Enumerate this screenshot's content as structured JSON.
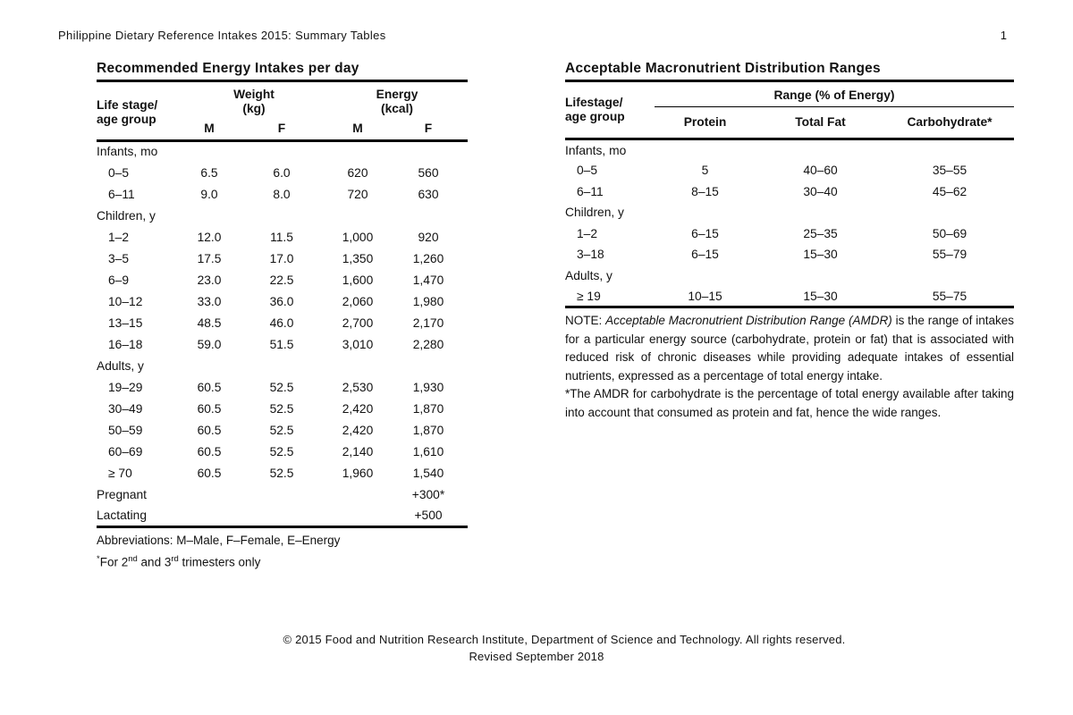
{
  "page": {
    "header": "Philippine Dietary Reference Intakes 2015: Summary Tables",
    "page_number": "1",
    "footer_line1": "© 2015 Food and Nutrition Research Institute, Department of Science and Technology. All rights reserved.",
    "footer_line2": "Revised September 2018"
  },
  "energy_table": {
    "title": "Recommended Energy Intakes per day",
    "col1_header_line1": "Life stage/",
    "col1_header_line2": "age group",
    "weight_header_line1": "Weight",
    "weight_header_line2": "(kg)",
    "energy_header_line1": "Energy",
    "energy_header_line2": "(kcal)",
    "sub_headers": [
      "M",
      "F",
      "M",
      "F"
    ],
    "rows": [
      {
        "label": "Infants, mo",
        "group": true,
        "values": []
      },
      {
        "label": "0–5",
        "values": [
          "6.5",
          "6.0",
          "620",
          "560"
        ]
      },
      {
        "label": "6–11",
        "values": [
          "9.0",
          "8.0",
          "720",
          "630"
        ]
      },
      {
        "label": "Children, y",
        "group": true,
        "values": []
      },
      {
        "label": "1–2",
        "values": [
          "12.0",
          "11.5",
          "1,000",
          "920"
        ]
      },
      {
        "label": "3–5",
        "values": [
          "17.5",
          "17.0",
          "1,350",
          "1,260"
        ]
      },
      {
        "label": "6–9",
        "values": [
          "23.0",
          "22.5",
          "1,600",
          "1,470"
        ]
      },
      {
        "label": "10–12",
        "values": [
          "33.0",
          "36.0",
          "2,060",
          "1,980"
        ]
      },
      {
        "label": "13–15",
        "values": [
          "48.5",
          "46.0",
          "2,700",
          "2,170"
        ]
      },
      {
        "label": "16–18",
        "values": [
          "59.0",
          "51.5",
          "3,010",
          "2,280"
        ]
      },
      {
        "label": "Adults, y",
        "group": true,
        "values": []
      },
      {
        "label": "19–29",
        "values": [
          "60.5",
          "52.5",
          "2,530",
          "1,930"
        ]
      },
      {
        "label": "30–49",
        "values": [
          "60.5",
          "52.5",
          "2,420",
          "1,870"
        ]
      },
      {
        "label": "50–59",
        "values": [
          "60.5",
          "52.5",
          "2,420",
          "1,870"
        ]
      },
      {
        "label": "60–69",
        "values": [
          "60.5",
          "52.5",
          "2,140",
          "1,610"
        ]
      },
      {
        "label": "≥ 70",
        "values": [
          "60.5",
          "52.5",
          "1,960",
          "1,540"
        ]
      },
      {
        "label": "Pregnant",
        "group": true,
        "values": [
          "",
          "",
          "",
          "+300*"
        ]
      },
      {
        "label": "Lactating",
        "group": true,
        "values": [
          "",
          "",
          "",
          "+500"
        ]
      }
    ],
    "abbreviations": "Abbreviations: M–Male, F–Female, E–Energy",
    "footnote": {
      "sup0": "*",
      "pre": "For 2",
      "sup1": "nd",
      "mid": " and 3",
      "sup2": "rd",
      "post": " trimesters only"
    }
  },
  "amdr_table": {
    "title": "Acceptable Macronutrient Distribution Ranges",
    "col1_header_line1": "Lifestage/",
    "col1_header_line2": "age group",
    "range_header": "Range (% of Energy)",
    "sub_headers": [
      "Protein",
      "Total Fat",
      "Carbohydrate*"
    ],
    "rows": [
      {
        "label": "Infants, mo",
        "group": true,
        "values": []
      },
      {
        "label": "0–5",
        "values": [
          "5",
          "40–60",
          "35–55"
        ]
      },
      {
        "label": "6–11",
        "values": [
          "8–15",
          "30–40",
          "45–62"
        ]
      },
      {
        "label": "Children, y",
        "group": true,
        "values": []
      },
      {
        "label": "1–2",
        "values": [
          "6–15",
          "25–35",
          "50–69"
        ]
      },
      {
        "label": "3–18",
        "values": [
          "6–15",
          "15–30",
          "55–79"
        ]
      },
      {
        "label": "Adults, y",
        "group": true,
        "values": []
      },
      {
        "label": "≥ 19",
        "values": [
          "10–15",
          "15–30",
          "55–75"
        ]
      }
    ],
    "note": {
      "label": "NOTE: ",
      "italic": "Acceptable Macronutrient Distribution Range (AMDR)",
      "rest": " is the range of intakes for a particular energy source (carbohydrate, protein or fat) that is associated with reduced risk of chronic diseases while providing adequate intakes of essential nutrients, expressed as a percentage of total energy intake."
    },
    "footnote": "*The AMDR for carbohydrate is the percentage of total energy available after taking into account that consumed as protein and fat, hence the wide ranges."
  }
}
